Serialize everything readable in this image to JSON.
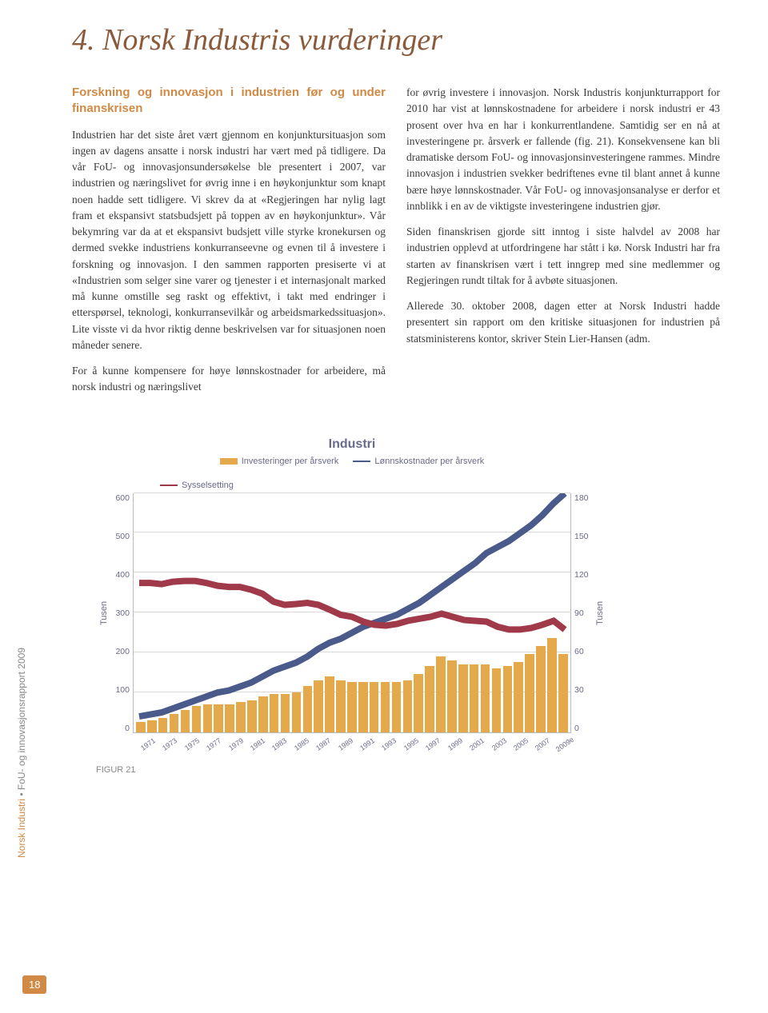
{
  "title": "4. Norsk Industris vurderinger",
  "subtitle": "Forskning og innovasjon i industrien før og under finanskrisen",
  "para_left_1": "Industrien har det siste året vært gjennom en konjunktursituasjon som ingen av dagens ansatte i norsk industri har vært med på tidligere. Da vår FoU- og innovasjonsundersøkelse ble presentert i 2007, var industrien og næringslivet for øvrig inne i en høykonjunktur som knapt noen hadde sett tidligere. Vi skrev da at «Regjeringen har nylig lagt fram et ekspansivt statsbudsjett på toppen av en høykonjunktur». Vår bekymring var da at et ekspansivt budsjett ville styrke kronekursen og dermed svekke industriens konkurranseevne og evnen til å investere i forskning og innovasjon. I den sammen rapporten presiserte vi at «Industrien som selger sine varer og tjenester i et internasjonalt marked må kunne omstille seg raskt og effektivt, i takt med endringer i etterspørsel, teknologi, konkurransevilkår og arbeidsmarkedssituasjon». Lite visste vi da hvor riktig denne beskrivelsen var for situasjonen noen måneder senere.",
  "para_left_2": "For å kunne kompensere for høye lønnskostnader for arbeidere, må norsk industri og næringslivet",
  "para_right_1": "for øvrig investere i innovasjon. Norsk Industris konjunkturrapport for 2010 har vist at lønnskostnadene for arbeidere i norsk industri er 43 prosent over hva en har i konkurrentlandene. Samtidig ser en nå at investeringene pr. årsverk er fallende (fig. 21). Konsekvensene kan bli dramatiske dersom FoU- og innovasjonsinvesteringene rammes. Mindre innovasjon i industrien svekker bedriftenes evne til blant annet å kunne bære høye lønnskostnader. Vår FoU- og innovasjonsanalyse er derfor et innblikk i en av de viktigste investeringene industrien gjør.",
  "para_right_2": "Siden finanskrisen gjorde sitt inntog i siste halvdel av 2008 har industrien opplevd at utfordringene har stått i kø. Norsk Industri har fra starten av finanskrisen vært i tett inngrep med sine medlemmer og Regjeringen rundt tiltak for å avbøte situasjonen.",
  "para_right_3": "Allerede 30. oktober 2008, dagen etter at Norsk Industri hadde presentert sin rapport om den kritiske situasjonen for industrien på statsministerens kontor, skriver Stein Lier-Hansen (adm.",
  "side_label_a": "Norsk Industri",
  "side_label_b": " FoU- og innovasjonsrapport 2009",
  "page_number": "18",
  "figure_label": "FIGUR 21",
  "chart": {
    "type": "bar+line",
    "title": "Industri",
    "series": {
      "bars": {
        "label": "Investeringer per årsverk",
        "color": "#e3a94a"
      },
      "line_cost": {
        "label": "Lønnskostnader per årsverk",
        "color": "#4a5a8a",
        "width": 2
      },
      "line_emp": {
        "label": "Sysselsetting",
        "color": "#a03a4a",
        "width": 2
      }
    },
    "y_left": {
      "label": "Tusen",
      "min": 0,
      "max": 600,
      "ticks": [
        0,
        100,
        200,
        300,
        400,
        500,
        600
      ]
    },
    "y_right": {
      "label": "Tusen",
      "min": 0,
      "max": 180,
      "ticks": [
        0,
        30,
        60,
        90,
        120,
        150,
        180
      ]
    },
    "plot_bg": "#ffffff",
    "grid_color": "#d8d8d8",
    "categories": [
      "1971",
      "1972",
      "1973",
      "1974",
      "1975",
      "1976",
      "1977",
      "1978",
      "1979",
      "1980",
      "1981",
      "1982",
      "1983",
      "1984",
      "1985",
      "1986",
      "1987",
      "1988",
      "1989",
      "1990",
      "1991",
      "1992",
      "1993",
      "1994",
      "1995",
      "1996",
      "1997",
      "1998",
      "1999",
      "2000",
      "2001",
      "2002",
      "2003",
      "2004",
      "2005",
      "2006",
      "2007",
      "2008",
      "2009e"
    ],
    "x_tick_every_other": [
      "1971",
      "1973",
      "1975",
      "1977",
      "1979",
      "1981",
      "1983",
      "1985",
      "1987",
      "1989",
      "1991",
      "1993",
      "1995",
      "1997",
      "1999",
      "2001",
      "2003",
      "2005",
      "2007",
      "2009e"
    ],
    "bars_values": [
      25,
      30,
      35,
      45,
      55,
      65,
      70,
      70,
      70,
      75,
      80,
      90,
      95,
      95,
      100,
      115,
      130,
      140,
      130,
      125,
      125,
      125,
      125,
      125,
      130,
      145,
      165,
      190,
      180,
      170,
      170,
      170,
      160,
      165,
      175,
      195,
      215,
      235,
      195
    ],
    "line_cost_values": [
      40,
      45,
      50,
      60,
      70,
      80,
      90,
      100,
      105,
      115,
      125,
      140,
      155,
      165,
      175,
      190,
      210,
      225,
      235,
      250,
      265,
      275,
      285,
      295,
      310,
      325,
      345,
      365,
      385,
      405,
      425,
      450,
      465,
      480,
      500,
      520,
      545,
      575,
      600
    ],
    "line_emp_values": [
      375,
      375,
      372,
      378,
      380,
      380,
      375,
      368,
      365,
      365,
      358,
      348,
      328,
      320,
      322,
      325,
      320,
      308,
      295,
      290,
      278,
      270,
      268,
      272,
      280,
      285,
      290,
      298,
      290,
      282,
      280,
      278,
      265,
      258,
      258,
      262,
      270,
      280,
      258
    ]
  }
}
